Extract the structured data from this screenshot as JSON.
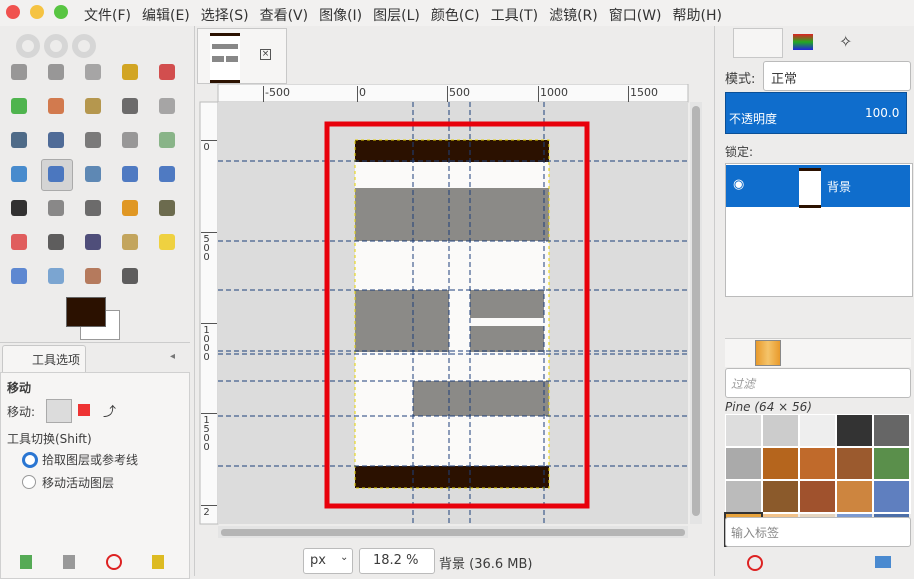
{
  "menu": [
    "文件(F)",
    "编辑(E)",
    "选择(S)",
    "查看(V)",
    "图像(I)",
    "图层(L)",
    "颜色(C)",
    "工具(T)",
    "滤镜(R)",
    "窗口(W)",
    "帮助(H)"
  ],
  "tool_options": {
    "tab": "工具选项",
    "title": "移动",
    "move_label": "移动:",
    "toggle_label": "工具切换(Shift)",
    "options": [
      "拾取图层或参考线",
      "移动活动图层"
    ]
  },
  "ruler": {
    "horizontal": [
      "-500",
      "0",
      "500",
      "1000",
      "1500"
    ],
    "vertical": [
      "0",
      "500",
      "1000",
      "1500",
      "2"
    ]
  },
  "status": {
    "unit": "px",
    "zoom": "18.2 %",
    "info": "背景 (36.6 MB)"
  },
  "layers": {
    "mode_label": "模式:",
    "mode": "正常",
    "opacity_label": "不透明度",
    "opacity": "100.0",
    "lock_label": "锁定:",
    "layer_name": "背景"
  },
  "brushes": {
    "filter_placeholder": "过滤",
    "brush_name": "Pine (64 × 56)",
    "tag_placeholder": "输入标签"
  }
}
